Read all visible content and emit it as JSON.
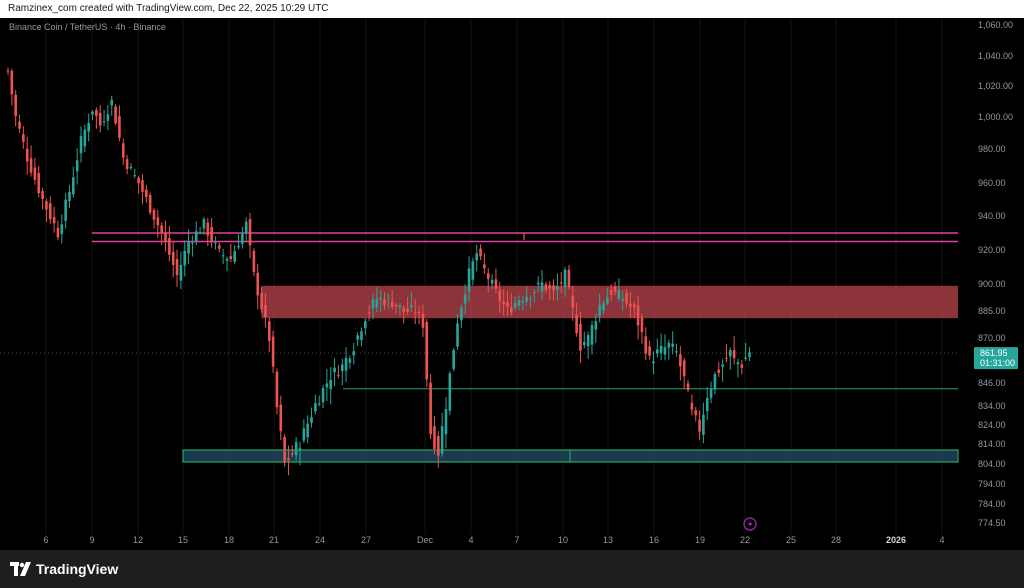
{
  "header": {
    "caption": "Ramzinex_com created with TradingView.com, Dec 22, 2025 10:29 UTC"
  },
  "symbol": {
    "label": "Binance Coin / TetherUS · 4h · Binance"
  },
  "footer": {
    "brand": "TradingView",
    "logo_icon": "tradingview-logo-icon"
  },
  "colors": {
    "up": "#26a69a",
    "down": "#ef5350",
    "zone_fill": "#b5424a",
    "line_pink": "#e040a0",
    "line_green": "#26a660",
    "box_blue": "#1a3a4e",
    "price_badge": "#26a69a"
  },
  "chart_data": {
    "type": "candlestick",
    "title": "",
    "symbol": "Binance Coin / TetherUS",
    "timeframe": "4h",
    "exchange": "Binance",
    "y_ticks": [
      "1,060.00",
      "1,040.00",
      "1,020.00",
      "1,000.00",
      "980.00",
      "960.00",
      "940.00",
      "920.00",
      "900.00",
      "885.00",
      "870.00",
      "846.00",
      "834.00",
      "824.00",
      "814.00",
      "804.00",
      "794.00",
      "784.00",
      "774.50"
    ],
    "x_ticks": [
      "6",
      "9",
      "12",
      "15",
      "18",
      "21",
      "24",
      "27",
      "Dec",
      "4",
      "7",
      "10",
      "13",
      "16",
      "19",
      "22",
      "25",
      "28",
      "2026",
      "4"
    ],
    "current_price": "861.95",
    "countdown": "01:31:00",
    "zones": [
      {
        "type": "resistance-zone",
        "from": 881,
        "to": 899
      },
      {
        "type": "resistance-lines",
        "levels": [
          930,
          925
        ]
      },
      {
        "type": "support-line",
        "level": 843
      },
      {
        "type": "support-box",
        "from": 805,
        "to": 811
      }
    ],
    "path_points": [
      [
        0,
        1030
      ],
      [
        2,
        1000
      ],
      [
        5,
        975
      ],
      [
        9,
        950
      ],
      [
        13,
        930
      ],
      [
        16,
        955
      ],
      [
        19,
        985
      ],
      [
        22,
        1005
      ],
      [
        24,
        995
      ],
      [
        27,
        1010
      ],
      [
        30,
        975
      ],
      [
        34,
        960
      ],
      [
        37,
        945
      ],
      [
        40,
        930
      ],
      [
        44,
        905
      ],
      [
        47,
        925
      ],
      [
        51,
        935
      ],
      [
        55,
        918
      ],
      [
        58,
        915
      ],
      [
        62,
        935
      ],
      [
        64,
        905
      ],
      [
        68,
        870
      ],
      [
        70,
        833
      ],
      [
        72,
        804
      ],
      [
        76,
        815
      ],
      [
        80,
        835
      ],
      [
        84,
        850
      ],
      [
        87,
        855
      ],
      [
        90,
        866
      ],
      [
        93,
        882
      ],
      [
        96,
        892
      ],
      [
        100,
        890
      ],
      [
        103,
        885
      ],
      [
        106,
        885
      ],
      [
        108,
        878
      ],
      [
        110,
        820
      ],
      [
        112,
        810
      ],
      [
        114,
        835
      ],
      [
        117,
        880
      ],
      [
        120,
        906
      ],
      [
        122,
        918
      ],
      [
        124,
        908
      ],
      [
        127,
        895
      ],
      [
        130,
        885
      ],
      [
        133,
        892
      ],
      [
        136,
        895
      ],
      [
        139,
        900
      ],
      [
        142,
        895
      ],
      [
        145,
        905
      ],
      [
        147,
        885
      ],
      [
        149,
        866
      ],
      [
        151,
        870
      ],
      [
        154,
        888
      ],
      [
        157,
        896
      ],
      [
        160,
        892
      ],
      [
        163,
        885
      ],
      [
        165,
        872
      ],
      [
        167,
        858
      ],
      [
        169,
        862
      ],
      [
        172,
        866
      ],
      [
        174,
        862
      ],
      [
        176,
        848
      ],
      [
        178,
        830
      ],
      [
        180,
        822
      ],
      [
        182,
        840
      ],
      [
        184,
        850
      ],
      [
        186,
        856
      ],
      [
        188,
        862
      ],
      [
        189,
        858
      ],
      [
        191,
        856
      ],
      [
        193,
        863
      ]
    ]
  }
}
